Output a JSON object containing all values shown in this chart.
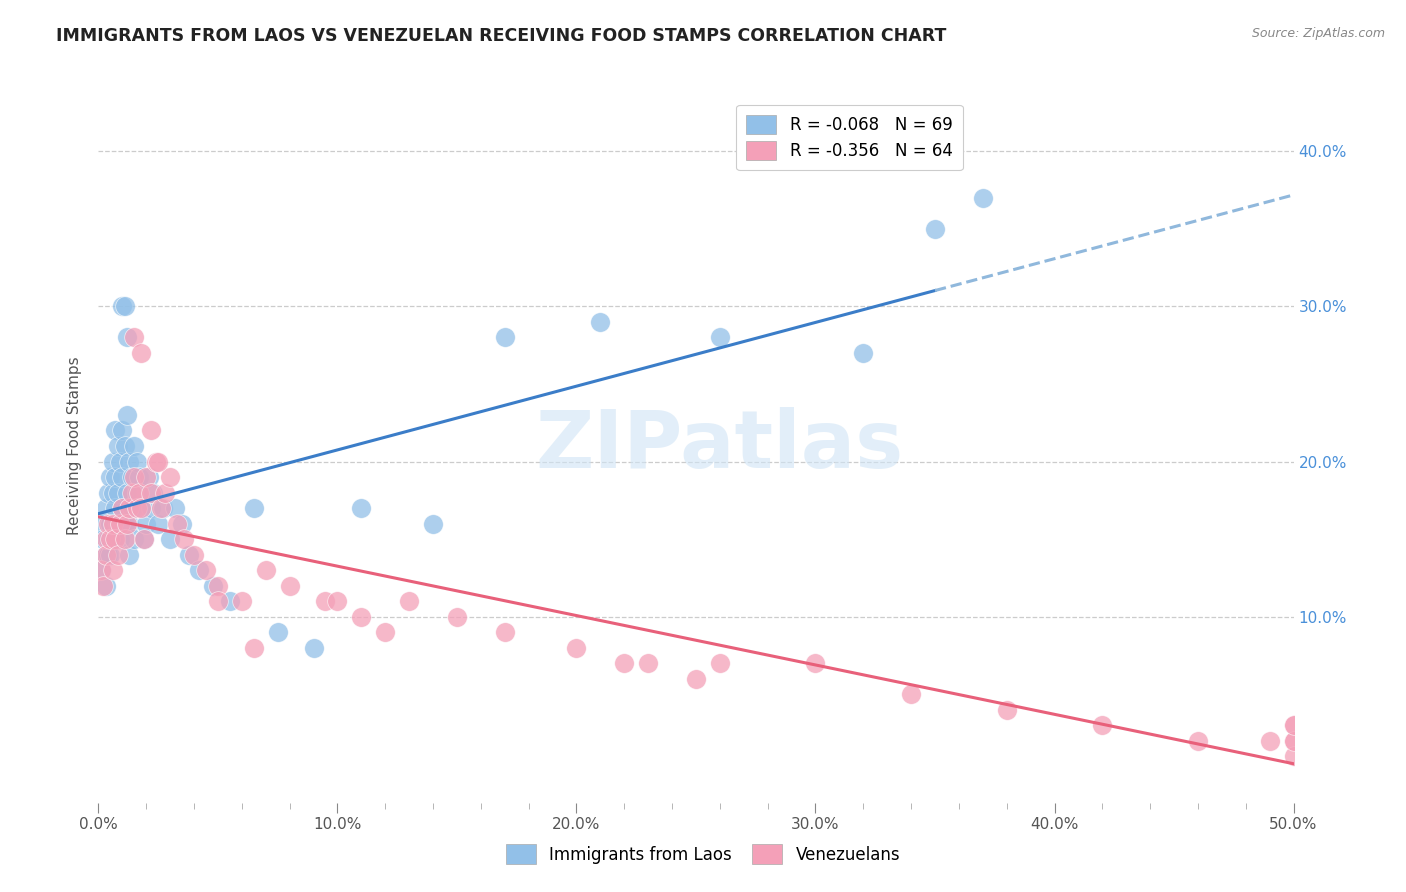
{
  "title": "IMMIGRANTS FROM LAOS VS VENEZUELAN RECEIVING FOOD STAMPS CORRELATION CHART",
  "source": "Source: ZipAtlas.com",
  "ylabel": "Receiving Food Stamps",
  "xlim": [
    0.0,
    0.5
  ],
  "ylim": [
    -0.02,
    0.44
  ],
  "xlabel_vals": [
    0.0,
    0.1,
    0.2,
    0.3,
    0.4,
    0.5
  ],
  "xlabel_ticks": [
    "0.0%",
    "10.0%",
    "20.0%",
    "30.0%",
    "40.0%",
    "50.0%"
  ],
  "ylabel_vals": [
    0.1,
    0.2,
    0.3,
    0.4
  ],
  "ylabel_ticks": [
    "10.0%",
    "20.0%",
    "30.0%",
    "40.0%"
  ],
  "legend_laos": "R = -0.068   N = 69",
  "legend_ven": "R = -0.356   N = 64",
  "color_laos": "#92C0E8",
  "color_ven": "#F4A0B8",
  "trendline_laos_solid_color": "#3B7DC8",
  "trendline_laos_dash_color": "#90B8DC",
  "trendline_ven_color": "#E8607A",
  "watermark": "ZIPatlas",
  "laos_x": [
    0.001,
    0.002,
    0.002,
    0.003,
    0.003,
    0.003,
    0.004,
    0.004,
    0.004,
    0.005,
    0.005,
    0.005,
    0.006,
    0.006,
    0.006,
    0.007,
    0.007,
    0.007,
    0.008,
    0.008,
    0.008,
    0.009,
    0.009,
    0.01,
    0.01,
    0.01,
    0.011,
    0.011,
    0.012,
    0.012,
    0.013,
    0.013,
    0.013,
    0.014,
    0.014,
    0.015,
    0.015,
    0.016,
    0.016,
    0.017,
    0.018,
    0.019,
    0.02,
    0.021,
    0.022,
    0.023,
    0.025,
    0.027,
    0.03,
    0.032,
    0.035,
    0.038,
    0.042,
    0.048,
    0.055,
    0.065,
    0.075,
    0.09,
    0.11,
    0.14,
    0.17,
    0.21,
    0.26,
    0.32,
    0.35,
    0.37,
    0.01,
    0.011,
    0.012
  ],
  "laos_y": [
    0.13,
    0.16,
    0.15,
    0.17,
    0.14,
    0.12,
    0.15,
    0.18,
    0.14,
    0.16,
    0.19,
    0.14,
    0.18,
    0.2,
    0.15,
    0.17,
    0.22,
    0.19,
    0.16,
    0.21,
    0.18,
    0.2,
    0.15,
    0.22,
    0.19,
    0.17,
    0.21,
    0.16,
    0.23,
    0.18,
    0.2,
    0.16,
    0.14,
    0.19,
    0.17,
    0.21,
    0.15,
    0.2,
    0.18,
    0.19,
    0.17,
    0.15,
    0.16,
    0.19,
    0.17,
    0.18,
    0.16,
    0.17,
    0.15,
    0.17,
    0.16,
    0.14,
    0.13,
    0.12,
    0.11,
    0.17,
    0.09,
    0.08,
    0.17,
    0.16,
    0.28,
    0.29,
    0.28,
    0.27,
    0.35,
    0.37,
    0.3,
    0.3,
    0.28
  ],
  "ven_x": [
    0.001,
    0.002,
    0.003,
    0.003,
    0.004,
    0.005,
    0.006,
    0.006,
    0.007,
    0.008,
    0.009,
    0.01,
    0.011,
    0.012,
    0.013,
    0.014,
    0.015,
    0.016,
    0.017,
    0.018,
    0.019,
    0.02,
    0.022,
    0.024,
    0.026,
    0.028,
    0.03,
    0.033,
    0.036,
    0.04,
    0.045,
    0.05,
    0.06,
    0.07,
    0.08,
    0.095,
    0.11,
    0.13,
    0.15,
    0.17,
    0.2,
    0.23,
    0.26,
    0.3,
    0.34,
    0.38,
    0.42,
    0.46,
    0.49,
    0.5,
    0.5,
    0.5,
    0.5,
    0.5,
    0.22,
    0.25,
    0.1,
    0.12,
    0.05,
    0.065,
    0.015,
    0.018,
    0.022,
    0.025
  ],
  "ven_y": [
    0.13,
    0.12,
    0.15,
    0.14,
    0.16,
    0.15,
    0.13,
    0.16,
    0.15,
    0.14,
    0.16,
    0.17,
    0.15,
    0.16,
    0.17,
    0.18,
    0.19,
    0.17,
    0.18,
    0.17,
    0.15,
    0.19,
    0.18,
    0.2,
    0.17,
    0.18,
    0.19,
    0.16,
    0.15,
    0.14,
    0.13,
    0.12,
    0.11,
    0.13,
    0.12,
    0.11,
    0.1,
    0.11,
    0.1,
    0.09,
    0.08,
    0.07,
    0.07,
    0.07,
    0.05,
    0.04,
    0.03,
    0.02,
    0.02,
    0.02,
    0.03,
    0.01,
    0.02,
    0.03,
    0.07,
    0.06,
    0.11,
    0.09,
    0.11,
    0.08,
    0.28,
    0.27,
    0.22,
    0.2
  ]
}
